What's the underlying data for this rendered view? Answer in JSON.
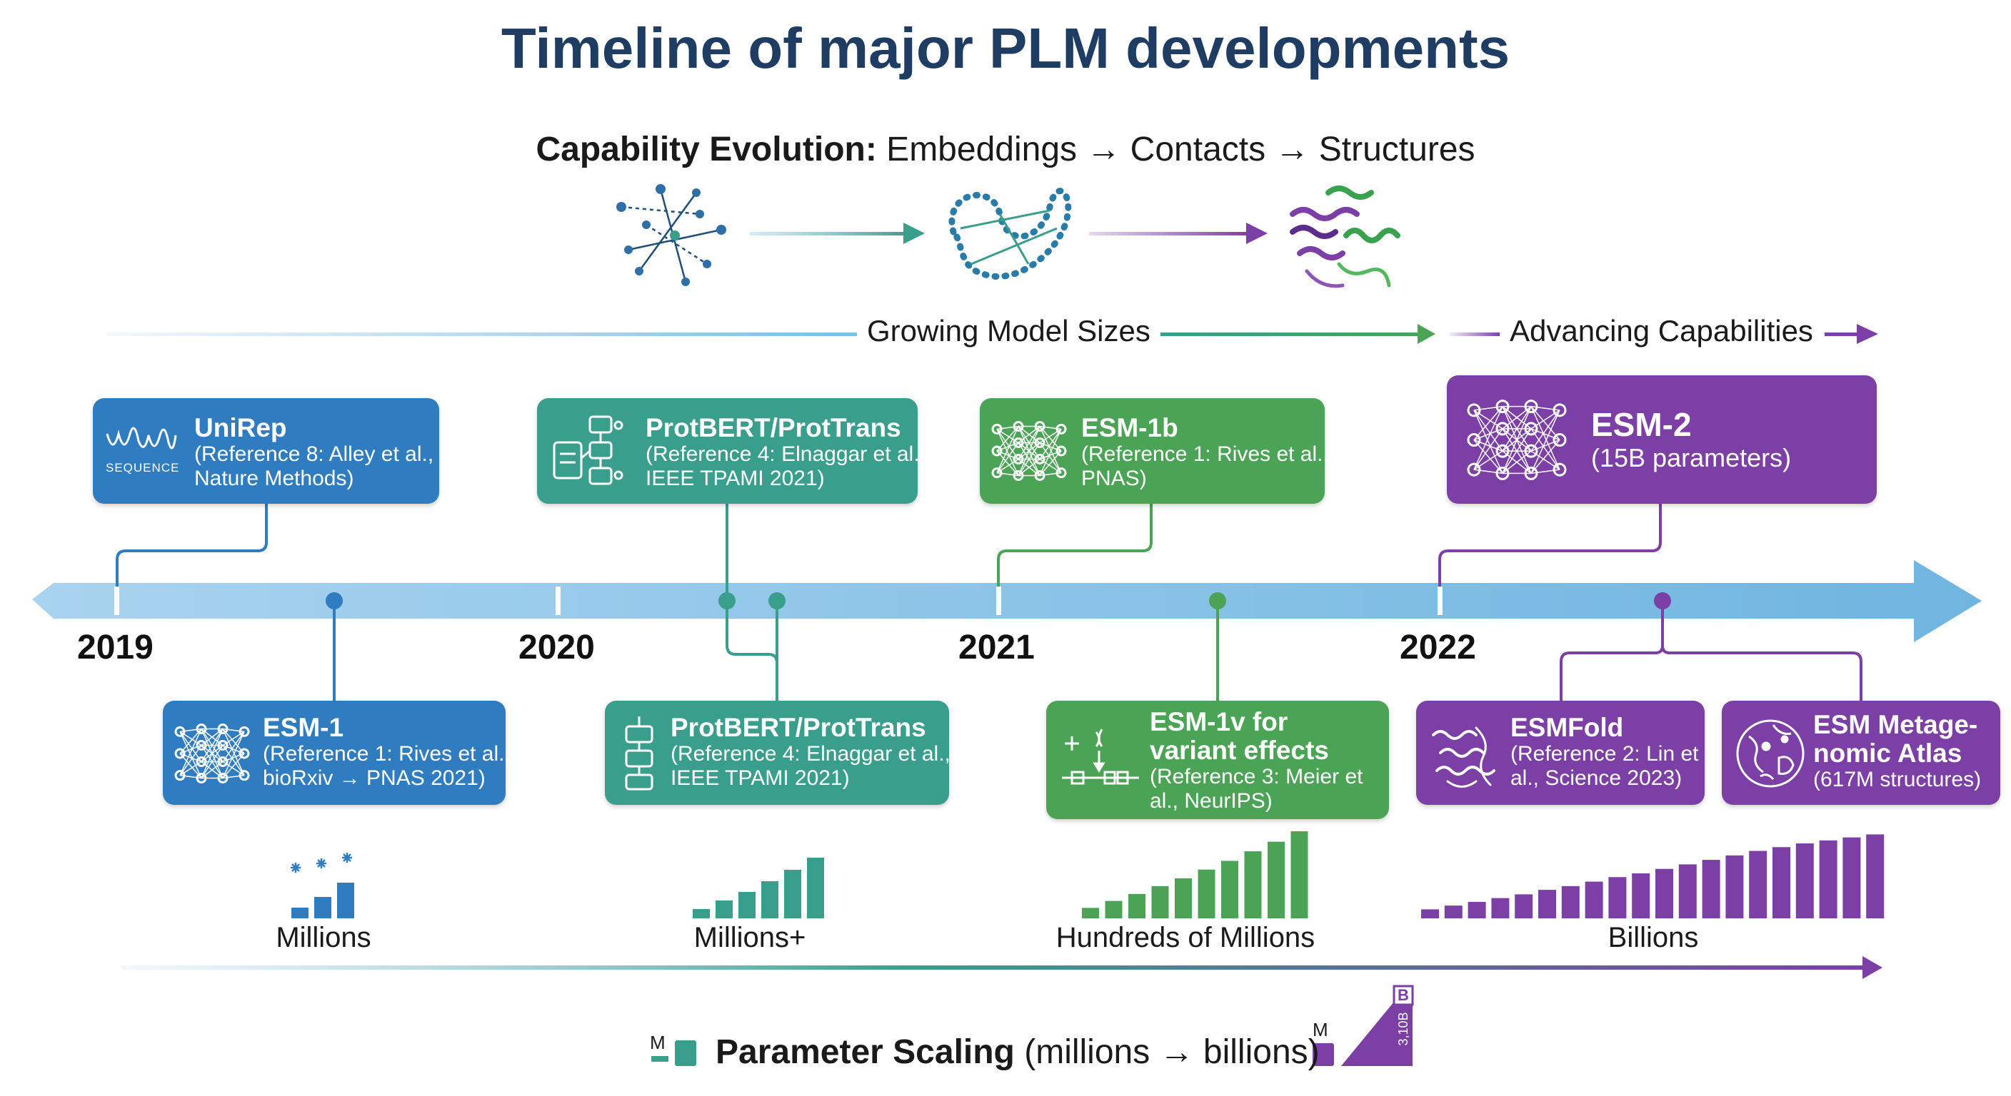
{
  "title": "Timeline of major PLM developments",
  "capability": {
    "label": "Capability Evolution:",
    "stages": "Embeddings → Contacts → Structures",
    "icons": [
      "embedding-network-icon",
      "contact-map-icon",
      "protein-structure-icon"
    ]
  },
  "bands": {
    "growing": "Growing Model Sizes",
    "advancing": "Advancing Capabilities"
  },
  "years": [
    "2019",
    "2020",
    "2021",
    "2022"
  ],
  "models_top": [
    {
      "name": "UniRep",
      "ref": "(Reference 8: Alley et al.,\nNature Methods)",
      "icon_caption": "SEQUENCE",
      "color": "#2f7cc1"
    },
    {
      "name": "ProtBERT/ProtTrans",
      "ref": "(Reference 4: Elnaggar et al.,\nIEEE TPAMI 2021)",
      "color": "#3a9e8d"
    },
    {
      "name": "ESM-1b",
      "ref": "(Reference 1: Rives et al.,\nPNAS)",
      "color": "#4ba355"
    },
    {
      "name": "ESM-2",
      "ref": "(15B parameters)",
      "color": "#7c3fa6"
    }
  ],
  "models_bottom": [
    {
      "name": "ESM-1",
      "ref": "(Reference 1: Rives et al.,\nbioRxiv → PNAS 2021)",
      "color": "#2f7cc1"
    },
    {
      "name": "ProtBERT/ProtTrans",
      "ref": "(Reference 4: Elnaggar et al.,\nIEEE TPAMI 2021)",
      "color": "#3a9e8d"
    },
    {
      "name": "ESM-1v for\nvariant effects",
      "ref": "(Reference 3: Meier et\nal., NeurIPS)",
      "color": "#4ba355"
    },
    {
      "name": "ESMFold",
      "ref": "(Reference 2: Lin et\nal., Science 2023)",
      "color": "#7c3fa6"
    },
    {
      "name": "ESM Metage-\nnomic Atlas",
      "ref": "(617M structures)",
      "color": "#7c3fa6"
    }
  ],
  "scale": {
    "labels": [
      "Millions",
      "Millions+",
      "Hundreds of Millions",
      "Billions"
    ],
    "bar_groups": [
      [
        0.15,
        0.3,
        0.5
      ],
      [
        0.13,
        0.25,
        0.37,
        0.52,
        0.68,
        0.85
      ],
      [
        0.12,
        0.2,
        0.28,
        0.37,
        0.46,
        0.56,
        0.66,
        0.77,
        0.88,
        1.0
      ],
      [
        0.12,
        0.17,
        0.22,
        0.27,
        0.32,
        0.38,
        0.43,
        0.49,
        0.55,
        0.6,
        0.66,
        0.72,
        0.78,
        0.84,
        0.9,
        0.95,
        1.0,
        1.04,
        1.08,
        1.12
      ]
    ]
  },
  "param": {
    "label": "Parameter Scaling",
    "range": "(millions → billions)",
    "small_marker": "M",
    "big_marker_top": "B",
    "big_marker_value": "3,10B",
    "big_marker_small": "M"
  },
  "colors": {
    "axis": "#7fbde3",
    "blue": "#2f7cc1",
    "teal": "#3a9e8d",
    "green": "#4ba355",
    "purple": "#7c3fa6",
    "title": "#1f3d63"
  }
}
